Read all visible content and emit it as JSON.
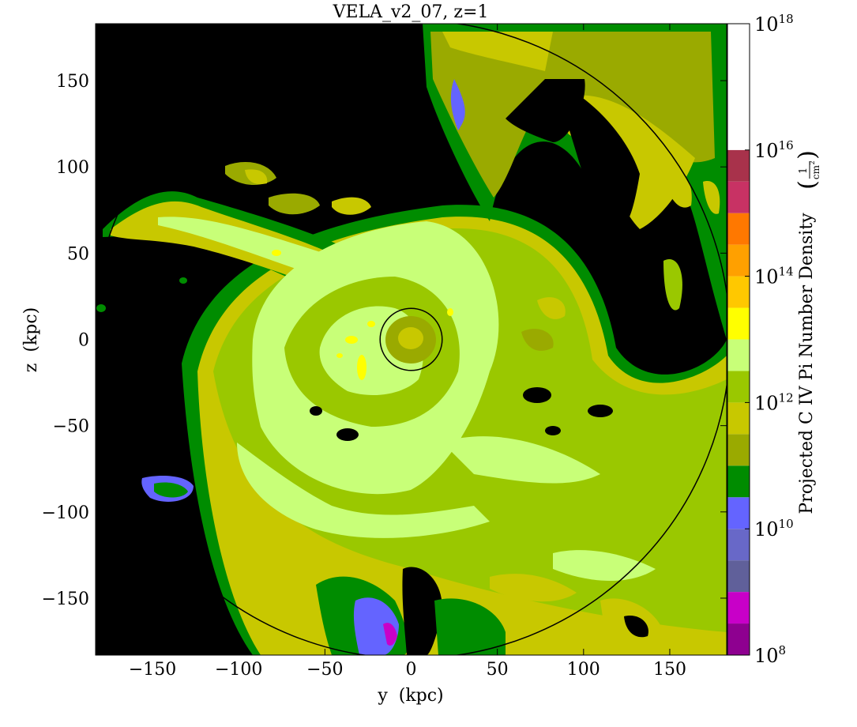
{
  "chart_data": {
    "type": "heatmap",
    "title": "VELA_v2_07, z=1",
    "xlabel": "y  (kpc)",
    "ylabel": "z  (kpc)",
    "xlim": [
      -183,
      183
    ],
    "ylim": [
      -183,
      183
    ],
    "x_ticks": [
      -150,
      -100,
      -50,
      0,
      50,
      100,
      150
    ],
    "y_ticks": [
      150,
      100,
      50,
      0,
      -50,
      -100,
      -150
    ],
    "x_tick_labels": [
      "−150",
      "−100",
      "−50",
      "0",
      "50",
      "100",
      "150"
    ],
    "y_tick_labels": [
      "150",
      "100",
      "50",
      "0",
      "−50",
      "−100",
      "−150"
    ],
    "colorbar": {
      "label": "Projected C IV Pi Number Density",
      "unit_numerator": "1",
      "unit_denominator": "cm",
      "unit_exponent": "2",
      "scale": "log",
      "range_log10": [
        8,
        18
      ],
      "tick_log10": [
        8,
        10,
        12,
        14,
        16,
        18
      ],
      "tick_base": "10",
      "tick_exponents": [
        "8",
        "10",
        "12",
        "14",
        "16",
        "18"
      ],
      "levels_per_decade": 2,
      "colors": [
        "#8e0090",
        "#c800c8",
        "#60609a",
        "#6868c8",
        "#6464ff",
        "#008c00",
        "#9aaa00",
        "#c8c800",
        "#9ac800",
        "#c8ff78",
        "#ffff00",
        "#ffc800",
        "#ffa000",
        "#ff7800",
        "#c83264",
        "#a8324b",
        "#ffffff"
      ]
    },
    "grid": false,
    "overlays": [
      {
        "shape": "circle",
        "center": [
          0,
          0
        ],
        "radius_kpc": 18
      },
      {
        "shape": "circle",
        "center": [
          0,
          0
        ],
        "radius_kpc": 185
      }
    ],
    "colors": {
      "background_no_data": "#000000",
      "green": "#008c00",
      "olive": "#9aaa00",
      "mustard": "#c8c800",
      "lime": "#9ac800",
      "pale_green": "#c8ff78",
      "yellow": "#ffff00",
      "blue_violet": "#6464ff",
      "magenta": "#c800c8"
    }
  }
}
